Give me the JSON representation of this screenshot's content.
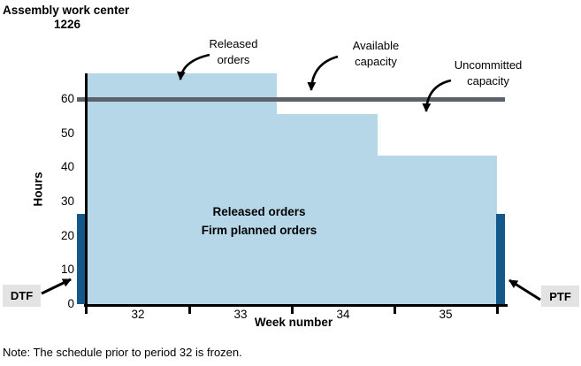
{
  "title": {
    "line1": "Assembly work center",
    "line2": "1226"
  },
  "annotations": {
    "released_orders": "Released orders",
    "available_capacity": "Available capacity",
    "uncommitted_capacity": "Uncommitted capacity"
  },
  "area_label": {
    "line1": "Released orders",
    "line2": "Firm planned orders"
  },
  "fence_labels": {
    "dtf": "DTF",
    "ptf": "PTF"
  },
  "note": "Note: The schedule prior to period 32 is frozen.",
  "chart_data": {
    "type": "area",
    "title": "Assembly work center 1226",
    "xlabel": "Week number",
    "ylabel": "Hours",
    "x_ticks": [
      32,
      33,
      34,
      35
    ],
    "y_ticks": [
      0,
      10,
      20,
      30,
      40,
      50,
      60
    ],
    "x_domain_weeks": [
      32,
      36
    ],
    "ylim": [
      0,
      68
    ],
    "grid": false,
    "legend_position": "none",
    "available_capacity_hours": 60,
    "load_segments": [
      {
        "from_week": 32.0,
        "to_week": 33.85,
        "hours": 67.5
      },
      {
        "from_week": 33.85,
        "to_week": 34.84,
        "hours": 55.5
      },
      {
        "from_week": 34.84,
        "to_week": 36.0,
        "hours": 43.5
      }
    ],
    "time_fences": [
      {
        "label": "DTF",
        "week": 32,
        "hours": 26.5
      },
      {
        "label": "PTF",
        "week": 36,
        "hours": 26.5
      }
    ]
  },
  "colors": {
    "load_fill": "#b5d7e8",
    "fence_bar": "#14578b",
    "capacity_line": "#5b6269",
    "fence_label_bg": "#e3e3e3",
    "axis": "#000000"
  }
}
